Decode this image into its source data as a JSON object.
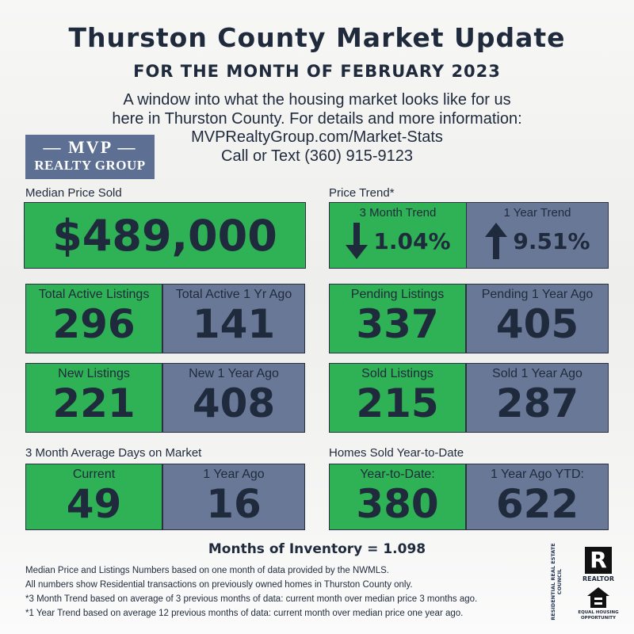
{
  "header": {
    "title": "Thurston County Market Update",
    "subtitle": "FOR THE MONTH OF FEBRUARY 2023",
    "intro": [
      "A window into what the housing market looks like for us",
      "here in Thurston County. For details and more information:",
      "MVPRealtyGroup.com/Market-Stats",
      "Call or Text (360) 915-9123"
    ]
  },
  "logo": {
    "top": "MVP",
    "bottom": "REALTY GROUP"
  },
  "median": {
    "label": "Median Price Sold",
    "value": "$489,000"
  },
  "trend": {
    "label": "Price Trend*",
    "items": [
      {
        "label": "3 Month Trend",
        "value": "1.04%",
        "direction": "down"
      },
      {
        "label": "1 Year Trend",
        "value": "9.51%",
        "direction": "up"
      }
    ]
  },
  "sections": {
    "days": "3 Month Average Days on Market",
    "ytd": "Homes Sold Year-to-Date"
  },
  "pairs": [
    {
      "current": {
        "label": "Total Active Listings",
        "value": "296"
      },
      "prior": {
        "label": "Total Active 1 Yr Ago",
        "value": "141"
      }
    },
    {
      "current": {
        "label": "Pending Listings",
        "value": "337"
      },
      "prior": {
        "label": "Pending 1 Year Ago",
        "value": "405"
      }
    },
    {
      "current": {
        "label": "New Listings",
        "value": "221"
      },
      "prior": {
        "label": "New 1 Year Ago",
        "value": "408"
      }
    },
    {
      "current": {
        "label": "Sold Listings",
        "value": "215"
      },
      "prior": {
        "label": "Sold 1 Year Ago",
        "value": "287"
      }
    },
    {
      "current": {
        "label": "Current",
        "value": "49"
      },
      "prior": {
        "label": "1 Year Ago",
        "value": "16"
      }
    },
    {
      "current": {
        "label": "Year-to-Date:",
        "value": "380"
      },
      "prior": {
        "label": "1 Year Ago YTD:",
        "value": "622"
      }
    }
  ],
  "inventory": "Months of Inventory = 1.098",
  "footnotes": [
    "Median Price and Listings Numbers based on one month of data provided by the NWMLS.",
    "All numbers show Residential transactions on previously owned homes in Thurston County only.",
    "*3 Month Trend based on average of 3 previous months of data: current month over median price 3 months ago.",
    "*1 Year Trend based on average 12 previous months of data: current month over median price one year ago."
  ],
  "badges": {
    "council": "RESIDENTIAL REAL ESTATE COUNCIL",
    "realtor": "REALTOR",
    "equal": "EQUAL HOUSING OPPORTUNITY"
  }
}
